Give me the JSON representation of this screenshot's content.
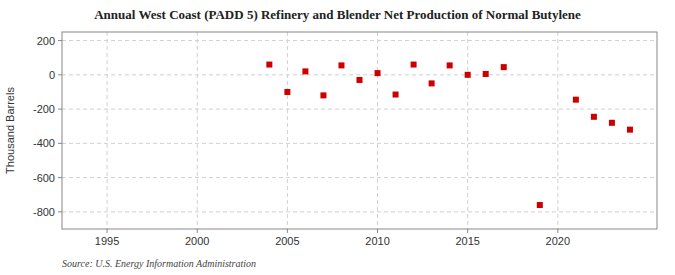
{
  "chart_data": {
    "type": "scatter",
    "title": "Annual West Coast (PADD 5) Refinery and Blender Net Production of Normal Butylene",
    "ylabel": "Thousand Barrels",
    "source": "Source: U.S. Energy Information Administration",
    "x": [
      2004,
      2005,
      2006,
      2007,
      2008,
      2009,
      2010,
      2011,
      2012,
      2013,
      2014,
      2015,
      2016,
      2017,
      2019,
      2021,
      2022,
      2023,
      2024
    ],
    "values": [
      60,
      -100,
      20,
      -120,
      55,
      -30,
      10,
      -115,
      60,
      -50,
      55,
      0,
      5,
      45,
      -760,
      -145,
      -245,
      -280,
      -320
    ],
    "color": "#CC0000",
    "marker": "square",
    "xlim": [
      1992.5,
      2025.5
    ],
    "xticks": [
      1995,
      2000,
      2005,
      2010,
      2015,
      2020
    ],
    "ylim": [
      -900,
      250
    ],
    "yticks": [
      -800,
      -600,
      -400,
      -200,
      0,
      200
    ],
    "grid": true
  }
}
